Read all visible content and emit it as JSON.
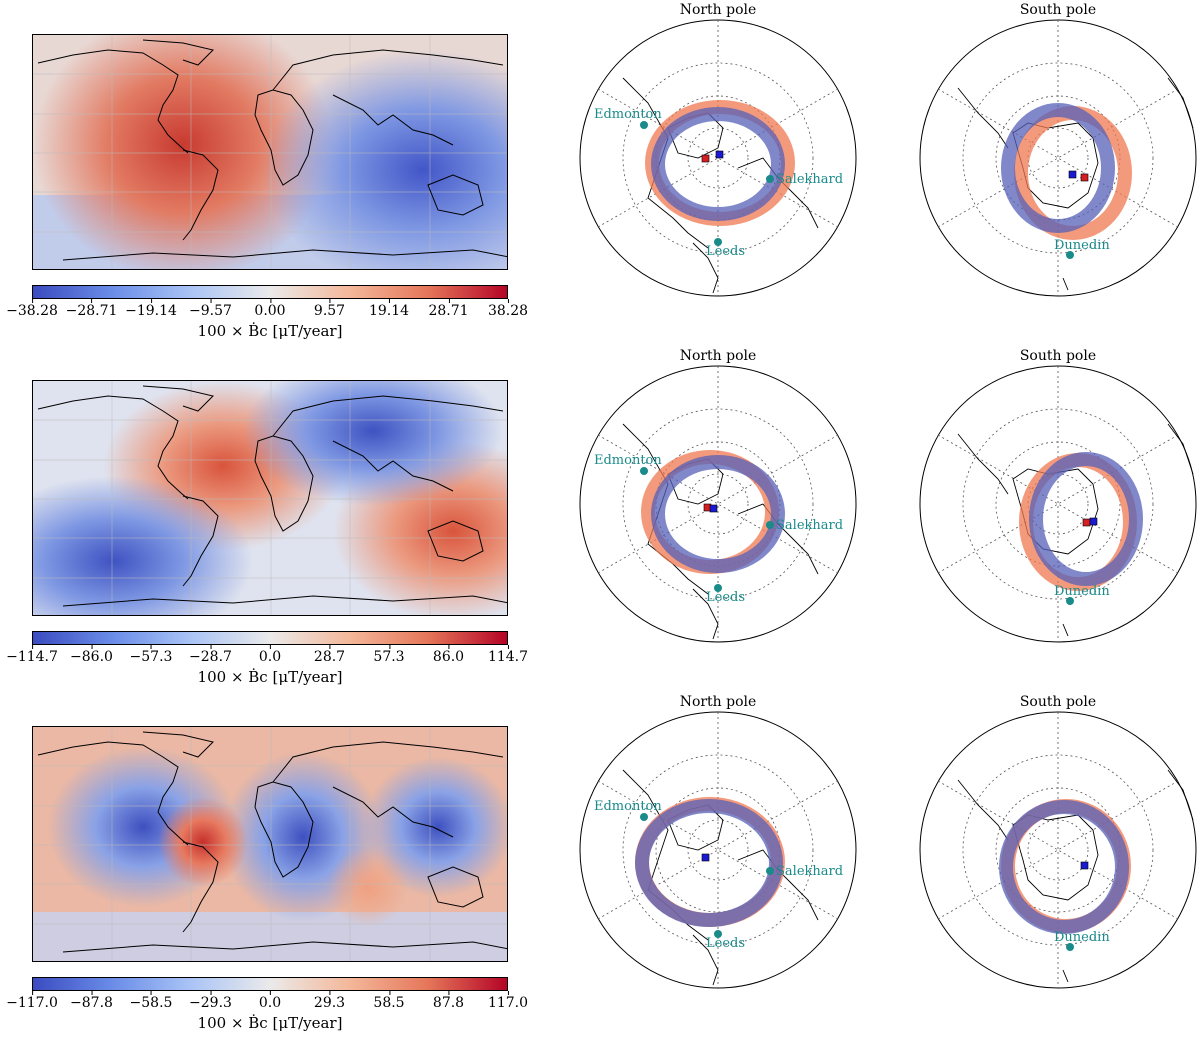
{
  "panels": [
    {
      "colorbar": {
        "ticks": [
          "−38.28",
          "−28.71",
          "−19.14",
          "−9.57",
          "0.00",
          "9.57",
          "19.14",
          "28.71",
          "38.28"
        ],
        "label": "100 × Ḃc  [μT/year]"
      },
      "north": {
        "title": "North pole",
        "cities": [
          "Edmonton",
          "Salekhard",
          "Leeds"
        ]
      },
      "south": {
        "title": "South pole",
        "cities": [
          "Dunedin"
        ]
      }
    },
    {
      "colorbar": {
        "ticks": [
          "−114.7",
          "−86.0",
          "−57.3",
          "−28.7",
          "0.0",
          "28.7",
          "57.3",
          "86.0",
          "114.7"
        ],
        "label": "100 × Ḃc  [μT/year]"
      },
      "north": {
        "title": "North pole",
        "cities": [
          "Edmonton",
          "Salekhard",
          "Leeds"
        ]
      },
      "south": {
        "title": "South pole",
        "cities": [
          "Dunedin"
        ]
      }
    },
    {
      "colorbar": {
        "ticks": [
          "−117.0",
          "−87.8",
          "−58.5",
          "−29.3",
          "0.0",
          "29.3",
          "58.5",
          "87.8",
          "117.0"
        ],
        "label": "100 × Ḃc  [μT/year]"
      },
      "north": {
        "title": "North pole",
        "cities": [
          "Edmonton",
          "Salekhard",
          "Leeds"
        ]
      },
      "south": {
        "title": "South pole",
        "cities": [
          "Dunedin"
        ]
      }
    }
  ],
  "colors": {
    "negative": "#3b4cc0",
    "neutral": "#f2f2f2",
    "positive": "#b40426",
    "city": "#1a8a8a",
    "ring_red": "#f07850",
    "ring_blue": "#5560b8"
  }
}
